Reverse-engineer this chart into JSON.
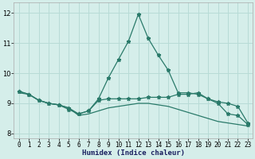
{
  "xlabel": "Humidex (Indice chaleur)",
  "bg_color": "#d5eeea",
  "grid_color": "#b8dbd6",
  "line_color": "#2a7a6a",
  "xlim": [
    -0.5,
    23.5
  ],
  "ylim": [
    7.85,
    12.35
  ],
  "yticks": [
    8,
    9,
    10,
    11,
    12
  ],
  "xticks": [
    0,
    1,
    2,
    3,
    4,
    5,
    6,
    7,
    8,
    9,
    10,
    11,
    12,
    13,
    14,
    15,
    16,
    17,
    18,
    19,
    20,
    21,
    22,
    23
  ],
  "line1_x": [
    0,
    1,
    2,
    3,
    4,
    5,
    6,
    7,
    8,
    9,
    10,
    11,
    12,
    13,
    14,
    15,
    16,
    17,
    18,
    19,
    20,
    21,
    22,
    23
  ],
  "line1_y": [
    9.4,
    9.3,
    9.1,
    9.0,
    8.95,
    8.85,
    8.65,
    8.75,
    9.15,
    9.85,
    10.45,
    11.05,
    11.95,
    11.15,
    10.6,
    10.1,
    9.35,
    9.35,
    9.3,
    9.15,
    9.0,
    8.65,
    8.6,
    8.3
  ],
  "line2_x": [
    0,
    1,
    2,
    3,
    4,
    5,
    6,
    7,
    8,
    9,
    10,
    11,
    12,
    13,
    14,
    15,
    16,
    17,
    18,
    19,
    20,
    21,
    22,
    23
  ],
  "line2_y": [
    9.4,
    9.3,
    9.1,
    9.0,
    8.95,
    8.8,
    8.65,
    8.75,
    9.1,
    9.15,
    9.15,
    9.15,
    9.15,
    9.2,
    9.2,
    9.2,
    9.3,
    9.3,
    9.35,
    9.15,
    9.05,
    9.0,
    8.9,
    8.35
  ],
  "line3_x": [
    0,
    1,
    2,
    3,
    4,
    5,
    6,
    7,
    8,
    9,
    10,
    11,
    12,
    13,
    14,
    15,
    16,
    17,
    18,
    19,
    20,
    21,
    22,
    23
  ],
  "line3_y": [
    9.35,
    9.3,
    9.1,
    9.0,
    8.95,
    8.85,
    8.6,
    8.65,
    8.75,
    8.85,
    8.9,
    8.95,
    9.0,
    9.0,
    8.95,
    8.9,
    8.8,
    8.7,
    8.6,
    8.5,
    8.4,
    8.35,
    8.3,
    8.25
  ]
}
